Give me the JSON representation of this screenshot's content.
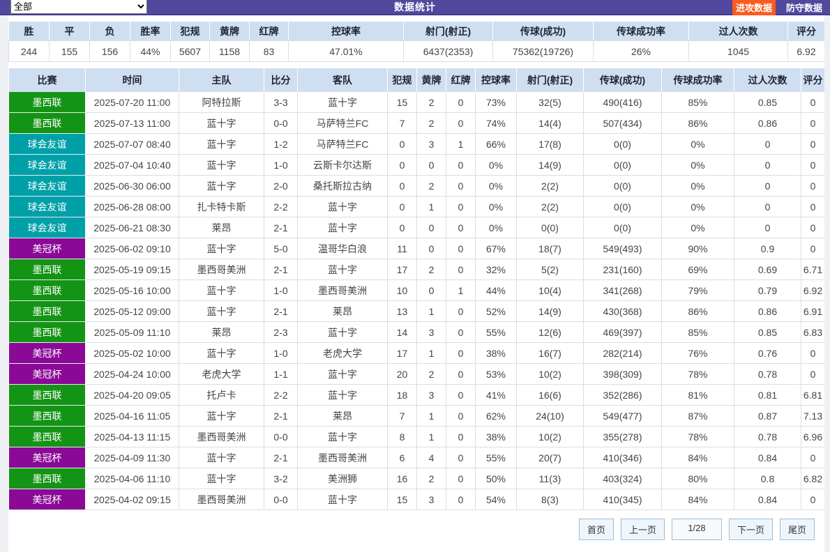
{
  "topbar": {
    "title": "数据统计",
    "filter_value": "全部",
    "attack_button": "进攻数据",
    "defense_button": "防守数据"
  },
  "colors": {
    "topbar_bg": "#52489e",
    "attack_btn_bg": "#fb5b1f",
    "header_bg": "#cfdff1",
    "league_green": "#149414",
    "league_teal": "#00a0a8",
    "league_purple": "#8a0996"
  },
  "summary": {
    "headers": [
      "胜",
      "平",
      "负",
      "胜率",
      "犯规",
      "黄牌",
      "红牌",
      "控球率",
      "射门(射正)",
      "传球(成功)",
      "传球成功率",
      "过人次数",
      "评分"
    ],
    "values": [
      "244",
      "155",
      "156",
      "44%",
      "5607",
      "1158",
      "83",
      "47.01%",
      "6437(2353)",
      "75362(19726)",
      "26%",
      "1045",
      "6.92"
    ]
  },
  "matches": {
    "headers": [
      "比赛",
      "时间",
      "主队",
      "比分",
      "客队",
      "犯规",
      "黄牌",
      "红牌",
      "控球率",
      "射门(射正)",
      "传球(成功)",
      "传球成功率",
      "过人次数",
      "评分"
    ],
    "rows": [
      {
        "league": "墨西联",
        "color": "green",
        "time": "2025-07-20 11:00",
        "home": "阿特拉斯",
        "score": "3-3",
        "away": "蓝十字",
        "stats": [
          "15",
          "2",
          "0",
          "73%",
          "32(5)",
          "490(416)",
          "85%",
          "0.85",
          "0"
        ]
      },
      {
        "league": "墨西联",
        "color": "green",
        "time": "2025-07-13 11:00",
        "home": "蓝十字",
        "score": "0-0",
        "away": "马萨特兰FC",
        "stats": [
          "7",
          "2",
          "0",
          "74%",
          "14(4)",
          "507(434)",
          "86%",
          "0.86",
          "0"
        ]
      },
      {
        "league": "球会友谊",
        "color": "teal",
        "time": "2025-07-07 08:40",
        "home": "蓝十字",
        "score": "1-2",
        "away": "马萨特兰FC",
        "stats": [
          "0",
          "3",
          "1",
          "66%",
          "17(8)",
          "0(0)",
          "0%",
          "0",
          "0"
        ]
      },
      {
        "league": "球会友谊",
        "color": "teal",
        "time": "2025-07-04 10:40",
        "home": "蓝十字",
        "score": "1-0",
        "away": "云斯卡尔达斯",
        "stats": [
          "0",
          "0",
          "0",
          "0%",
          "14(9)",
          "0(0)",
          "0%",
          "0",
          "0"
        ]
      },
      {
        "league": "球会友谊",
        "color": "teal",
        "time": "2025-06-30 06:00",
        "home": "蓝十字",
        "score": "2-0",
        "away": "桑托斯拉古纳",
        "stats": [
          "0",
          "2",
          "0",
          "0%",
          "2(2)",
          "0(0)",
          "0%",
          "0",
          "0"
        ]
      },
      {
        "league": "球会友谊",
        "color": "teal",
        "time": "2025-06-28 08:00",
        "home": "扎卡特卡斯",
        "score": "2-2",
        "away": "蓝十字",
        "stats": [
          "0",
          "1",
          "0",
          "0%",
          "2(2)",
          "0(0)",
          "0%",
          "0",
          "0"
        ]
      },
      {
        "league": "球会友谊",
        "color": "teal",
        "time": "2025-06-21 08:30",
        "home": "莱昂",
        "score": "2-1",
        "away": "蓝十字",
        "stats": [
          "0",
          "0",
          "0",
          "0%",
          "0(0)",
          "0(0)",
          "0%",
          "0",
          "0"
        ]
      },
      {
        "league": "美冠杯",
        "color": "purple",
        "time": "2025-06-02 09:10",
        "home": "蓝十字",
        "score": "5-0",
        "away": "温哥华白浪",
        "stats": [
          "11",
          "0",
          "0",
          "67%",
          "18(7)",
          "549(493)",
          "90%",
          "0.9",
          "0"
        ]
      },
      {
        "league": "墨西联",
        "color": "green",
        "time": "2025-05-19 09:15",
        "home": "墨西哥美洲",
        "score": "2-1",
        "away": "蓝十字",
        "stats": [
          "17",
          "2",
          "0",
          "32%",
          "5(2)",
          "231(160)",
          "69%",
          "0.69",
          "6.71"
        ]
      },
      {
        "league": "墨西联",
        "color": "green",
        "time": "2025-05-16 10:00",
        "home": "蓝十字",
        "score": "1-0",
        "away": "墨西哥美洲",
        "stats": [
          "10",
          "0",
          "1",
          "44%",
          "10(4)",
          "341(268)",
          "79%",
          "0.79",
          "6.92"
        ]
      },
      {
        "league": "墨西联",
        "color": "green",
        "time": "2025-05-12 09:00",
        "home": "蓝十字",
        "score": "2-1",
        "away": "莱昂",
        "stats": [
          "13",
          "1",
          "0",
          "52%",
          "14(9)",
          "430(368)",
          "86%",
          "0.86",
          "6.91"
        ]
      },
      {
        "league": "墨西联",
        "color": "green",
        "time": "2025-05-09 11:10",
        "home": "莱昂",
        "score": "2-3",
        "away": "蓝十字",
        "stats": [
          "14",
          "3",
          "0",
          "55%",
          "12(6)",
          "469(397)",
          "85%",
          "0.85",
          "6.83"
        ]
      },
      {
        "league": "美冠杯",
        "color": "purple",
        "time": "2025-05-02 10:00",
        "home": "蓝十字",
        "score": "1-0",
        "away": "老虎大学",
        "stats": [
          "17",
          "1",
          "0",
          "38%",
          "16(7)",
          "282(214)",
          "76%",
          "0.76",
          "0"
        ]
      },
      {
        "league": "美冠杯",
        "color": "purple",
        "time": "2025-04-24 10:00",
        "home": "老虎大学",
        "score": "1-1",
        "away": "蓝十字",
        "stats": [
          "20",
          "2",
          "0",
          "53%",
          "10(2)",
          "398(309)",
          "78%",
          "0.78",
          "0"
        ]
      },
      {
        "league": "墨西联",
        "color": "green",
        "time": "2025-04-20 09:05",
        "home": "托卢卡",
        "score": "2-2",
        "away": "蓝十字",
        "stats": [
          "18",
          "3",
          "0",
          "41%",
          "16(6)",
          "352(286)",
          "81%",
          "0.81",
          "6.81"
        ]
      },
      {
        "league": "墨西联",
        "color": "green",
        "time": "2025-04-16 11:05",
        "home": "蓝十字",
        "score": "2-1",
        "away": "莱昂",
        "stats": [
          "7",
          "1",
          "0",
          "62%",
          "24(10)",
          "549(477)",
          "87%",
          "0.87",
          "7.13"
        ]
      },
      {
        "league": "墨西联",
        "color": "green",
        "time": "2025-04-13 11:15",
        "home": "墨西哥美洲",
        "score": "0-0",
        "away": "蓝十字",
        "stats": [
          "8",
          "1",
          "0",
          "38%",
          "10(2)",
          "355(278)",
          "78%",
          "0.78",
          "6.96"
        ]
      },
      {
        "league": "美冠杯",
        "color": "purple",
        "time": "2025-04-09 11:30",
        "home": "蓝十字",
        "score": "2-1",
        "away": "墨西哥美洲",
        "stats": [
          "6",
          "4",
          "0",
          "55%",
          "20(7)",
          "410(346)",
          "84%",
          "0.84",
          "0"
        ]
      },
      {
        "league": "墨西联",
        "color": "green",
        "time": "2025-04-06 11:10",
        "home": "蓝十字",
        "score": "3-2",
        "away": "美洲狮",
        "stats": [
          "16",
          "2",
          "0",
          "50%",
          "11(3)",
          "403(324)",
          "80%",
          "0.8",
          "6.82"
        ]
      },
      {
        "league": "美冠杯",
        "color": "purple",
        "time": "2025-04-02 09:15",
        "home": "墨西哥美洲",
        "score": "0-0",
        "away": "蓝十字",
        "stats": [
          "15",
          "3",
          "0",
          "54%",
          "8(3)",
          "410(345)",
          "84%",
          "0.84",
          "0"
        ]
      }
    ]
  },
  "pagination": {
    "first": "首页",
    "prev": "上一页",
    "page": "1/28",
    "next": "下一页",
    "last": "尾页"
  }
}
